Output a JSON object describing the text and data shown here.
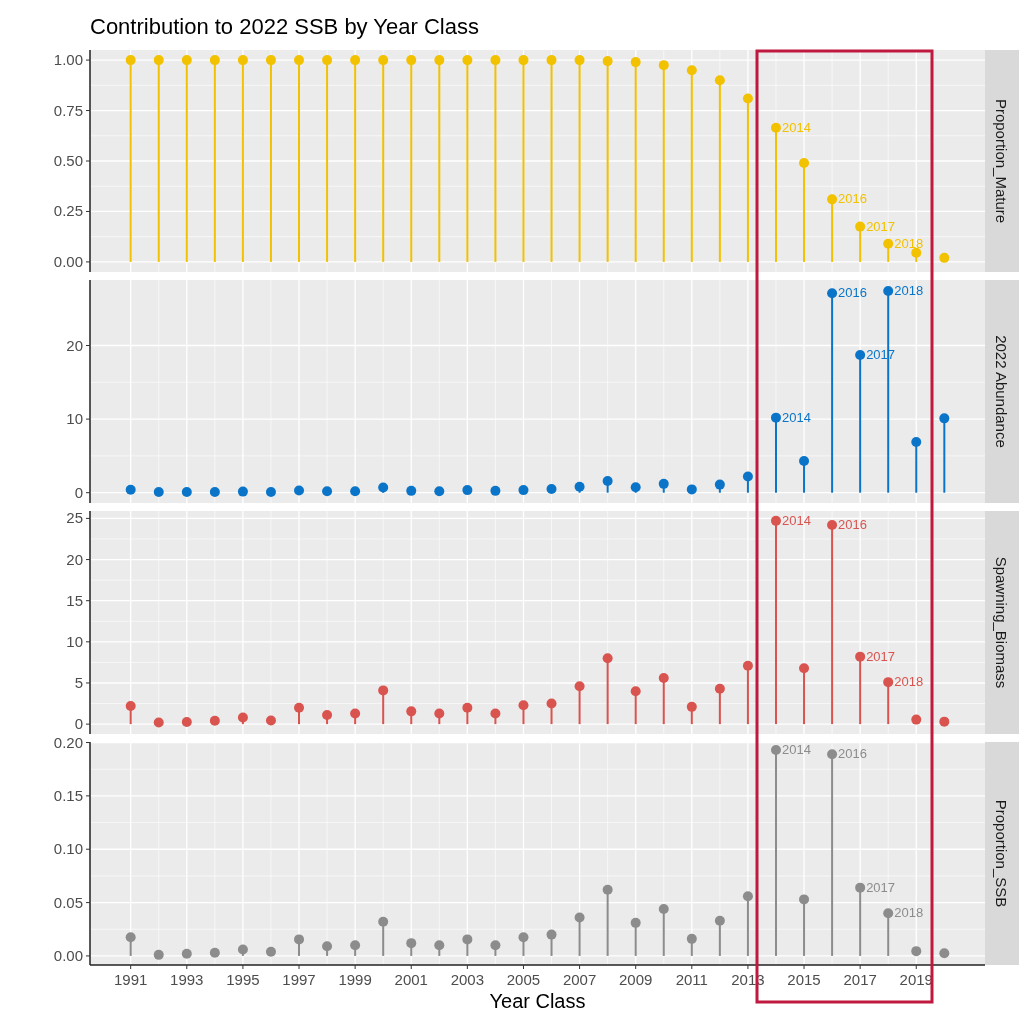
{
  "chart_data": [
    {
      "type": "lollipop",
      "title": "Contribution to 2022 SSB by Year Class",
      "y2label": "Proportion_Mature",
      "color": "#f2c100",
      "x": [
        1991,
        1992,
        1993,
        1994,
        1995,
        1996,
        1997,
        1998,
        1999,
        2000,
        2001,
        2002,
        2003,
        2004,
        2005,
        2006,
        2007,
        2008,
        2009,
        2010,
        2011,
        2012,
        2013,
        2014,
        2015,
        2016,
        2017,
        2018,
        2019,
        2020
      ],
      "values": [
        1,
        1,
        1,
        1,
        1,
        1,
        1,
        1,
        1,
        1,
        1,
        1,
        1,
        1,
        1,
        1,
        1,
        0.995,
        0.99,
        0.975,
        0.95,
        0.9,
        0.81,
        0.665,
        0.49,
        0.31,
        0.175,
        0.09,
        0.045,
        0.02
      ],
      "xlim": [
        1989.55,
        2021.45
      ],
      "xticks": [
        1991,
        1993,
        1995,
        1997,
        1999,
        2001,
        2003,
        2005,
        2007,
        2009,
        2011,
        2013,
        2015,
        2017,
        2019
      ],
      "ylim": [
        -0.05,
        1.05
      ],
      "yticks": [
        {
          "value": 0,
          "label": "0.00"
        },
        {
          "value": 0.25,
          "label": "0.25"
        },
        {
          "value": 0.5,
          "label": "0.50"
        },
        {
          "value": 0.75,
          "label": "0.75"
        },
        {
          "value": 1,
          "label": "1.00"
        }
      ],
      "grid": true,
      "tick_labels": "y",
      "marker": "circle",
      "annotations": [
        {
          "text": "2014",
          "x": 2014,
          "y": 0.665
        },
        {
          "text": "2016",
          "x": 2016,
          "y": 0.31
        },
        {
          "text": "2017",
          "x": 2017,
          "y": 0.175
        },
        {
          "text": "2018",
          "x": 2018,
          "y": 0.09
        }
      ]
    },
    {
      "type": "lollipop",
      "y2label": "2022 Abundance",
      "color": "#0a75c8",
      "x": [
        1991,
        1992,
        1993,
        1994,
        1995,
        1996,
        1997,
        1998,
        1999,
        2000,
        2001,
        2002,
        2003,
        2004,
        2005,
        2006,
        2007,
        2008,
        2009,
        2010,
        2011,
        2012,
        2013,
        2014,
        2015,
        2016,
        2017,
        2018,
        2019,
        2020
      ],
      "values": [
        0.4,
        0.1,
        0.1,
        0.1,
        0.15,
        0.1,
        0.3,
        0.2,
        0.2,
        0.7,
        0.25,
        0.2,
        0.35,
        0.25,
        0.35,
        0.5,
        0.8,
        1.6,
        0.75,
        1.2,
        0.45,
        1.1,
        2.2,
        10.2,
        4.3,
        27.1,
        18.7,
        27.4,
        6.9,
        10.1
      ],
      "xlim": [
        1989.55,
        2021.45
      ],
      "xticks": [
        1991,
        1993,
        1995,
        1997,
        1999,
        2001,
        2003,
        2005,
        2007,
        2009,
        2011,
        2013,
        2015,
        2017,
        2019
      ],
      "ylim": [
        -1.4,
        28.9
      ],
      "yticks": [
        0,
        10,
        20
      ],
      "grid": true,
      "tick_labels": "y",
      "marker": "circle",
      "annotations": [
        {
          "text": "2014",
          "x": 2014,
          "y": 10.2
        },
        {
          "text": "2016",
          "x": 2016,
          "y": 27.1
        },
        {
          "text": "2017",
          "x": 2017,
          "y": 18.7
        },
        {
          "text": "2018",
          "x": 2018,
          "y": 27.4
        }
      ]
    },
    {
      "type": "lollipop",
      "y2label": "Spawning_Biomass",
      "color": "#d9534f",
      "x": [
        1991,
        1992,
        1993,
        1994,
        1995,
        1996,
        1997,
        1998,
        1999,
        2000,
        2001,
        2002,
        2003,
        2004,
        2005,
        2006,
        2007,
        2008,
        2009,
        2010,
        2011,
        2012,
        2013,
        2014,
        2015,
        2016,
        2017,
        2018,
        2019,
        2020
      ],
      "values": [
        2.2,
        0.2,
        0.25,
        0.4,
        0.8,
        0.45,
        2,
        1.1,
        1.3,
        4.1,
        1.55,
        1.3,
        2,
        1.3,
        2.3,
        2.5,
        4.6,
        8,
        4,
        5.6,
        2.1,
        4.3,
        7.1,
        24.7,
        6.8,
        24.2,
        8.2,
        5.1,
        0.55,
        0.3
      ],
      "xlim": [
        1989.55,
        2021.45
      ],
      "xticks": [
        1991,
        1993,
        1995,
        1997,
        1999,
        2001,
        2003,
        2005,
        2007,
        2009,
        2011,
        2013,
        2015,
        2017,
        2019
      ],
      "ylim": [
        -1.2,
        25.9
      ],
      "yticks": [
        0,
        5,
        10,
        15,
        20,
        25
      ],
      "grid": true,
      "tick_labels": "y",
      "marker": "circle",
      "annotations": [
        {
          "text": "2014",
          "x": 2014,
          "y": 24.7
        },
        {
          "text": "2016",
          "x": 2016,
          "y": 24.2
        },
        {
          "text": "2017",
          "x": 2017,
          "y": 8.2
        },
        {
          "text": "2018",
          "x": 2018,
          "y": 5.1
        }
      ]
    },
    {
      "type": "lollipop",
      "xlabel": "Year Class",
      "y2label": "Proportion_SSB",
      "color": "#8c8c8c",
      "x": [
        1991,
        1992,
        1993,
        1994,
        1995,
        1996,
        1997,
        1998,
        1999,
        2000,
        2001,
        2002,
        2003,
        2004,
        2005,
        2006,
        2007,
        2008,
        2009,
        2010,
        2011,
        2012,
        2013,
        2014,
        2015,
        2016,
        2017,
        2018,
        2019,
        2020
      ],
      "values": [
        0.0175,
        0.001,
        0.002,
        0.003,
        0.006,
        0.004,
        0.0155,
        0.009,
        0.01,
        0.032,
        0.012,
        0.01,
        0.0155,
        0.01,
        0.0175,
        0.02,
        0.036,
        0.062,
        0.031,
        0.044,
        0.016,
        0.033,
        0.056,
        0.193,
        0.053,
        0.189,
        0.064,
        0.04,
        0.0045,
        0.0025
      ],
      "xlim": [
        1989.55,
        2021.45
      ],
      "xticks": [
        1991,
        1993,
        1995,
        1997,
        1999,
        2001,
        2003,
        2005,
        2007,
        2009,
        2011,
        2013,
        2015,
        2017,
        2019
      ],
      "ylim": [
        -0.0085,
        0.2005
      ],
      "yticks": [
        {
          "value": 0,
          "label": "0.00"
        },
        {
          "value": 0.05,
          "label": "0.05"
        },
        {
          "value": 0.1,
          "label": "0.10"
        },
        {
          "value": 0.15,
          "label": "0.15"
        },
        {
          "value": 0.2,
          "label": "0.20"
        }
      ],
      "grid": true,
      "marker": "circle",
      "annotations": [
        {
          "text": "2014",
          "x": 2014,
          "y": 0.193
        },
        {
          "text": "2016",
          "x": 2016,
          "y": 0.189
        },
        {
          "text": "2017",
          "x": 2017,
          "y": 0.064
        },
        {
          "text": "2018",
          "x": 2018,
          "y": 0.04
        }
      ]
    }
  ]
}
